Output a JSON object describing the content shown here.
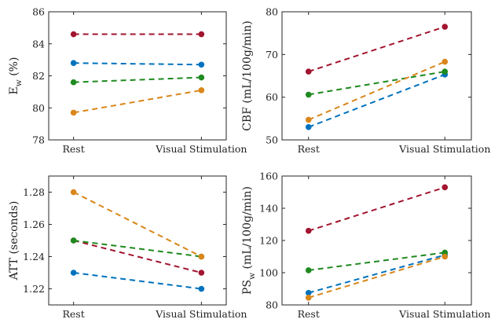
{
  "chart_data": [
    {
      "type": "line",
      "ylabel_main": "E",
      "ylabel_sub": "w",
      "ylabel_tail": " (%)",
      "categories": [
        "Rest",
        "Visual Stimulation"
      ],
      "ylim": [
        78,
        86
      ],
      "yticks": [
        "78",
        "80",
        "82",
        "84",
        "86"
      ],
      "series": [
        {
          "name": "red",
          "values": [
            84.6,
            84.6
          ]
        },
        {
          "name": "blue",
          "values": [
            82.8,
            82.7
          ]
        },
        {
          "name": "green",
          "values": [
            81.6,
            81.9
          ]
        },
        {
          "name": "orange",
          "values": [
            79.7,
            81.1
          ]
        }
      ]
    },
    {
      "type": "line",
      "ylabel_main": "CBF (mL/100g/min)",
      "ylabel_sub": "",
      "ylabel_tail": "",
      "categories": [
        "Rest",
        "Visual Stimulation"
      ],
      "ylim": [
        50,
        80
      ],
      "yticks": [
        "50",
        "60",
        "70",
        "80"
      ],
      "series": [
        {
          "name": "red",
          "values": [
            66.0,
            76.5
          ]
        },
        {
          "name": "blue",
          "values": [
            53.0,
            65.3
          ]
        },
        {
          "name": "green",
          "values": [
            60.6,
            66.0
          ]
        },
        {
          "name": "orange",
          "values": [
            54.7,
            68.3
          ]
        }
      ]
    },
    {
      "type": "line",
      "ylabel_main": "ATT (seconds)",
      "ylabel_sub": "",
      "ylabel_tail": "",
      "categories": [
        "Rest",
        "Visual Stimulation"
      ],
      "ylim": [
        1.21,
        1.29
      ],
      "yticks": [
        "1.22",
        "1.24",
        "1.26",
        "1.28"
      ],
      "series": [
        {
          "name": "red",
          "values": [
            1.25,
            1.23
          ]
        },
        {
          "name": "blue",
          "values": [
            1.23,
            1.22
          ]
        },
        {
          "name": "green",
          "values": [
            1.25,
            1.24
          ]
        },
        {
          "name": "orange",
          "values": [
            1.28,
            1.24
          ]
        }
      ]
    },
    {
      "type": "line",
      "ylabel_main": "PS",
      "ylabel_sub": "w",
      "ylabel_tail": " (mL/100g/min)",
      "categories": [
        "Rest",
        "Visual Stimulation"
      ],
      "ylim": [
        80,
        160
      ],
      "yticks": [
        "80",
        "100",
        "120",
        "140",
        "160"
      ],
      "series": [
        {
          "name": "red",
          "values": [
            126,
            153
          ]
        },
        {
          "name": "blue",
          "values": [
            87.5,
            111
          ]
        },
        {
          "name": "green",
          "values": [
            101.5,
            112.5
          ]
        },
        {
          "name": "orange",
          "values": [
            84.5,
            110
          ]
        }
      ]
    }
  ],
  "colors": {
    "red": "#a2142f",
    "blue": "#0072bd",
    "green": "#1f8a1f",
    "orange": "#d9861a"
  }
}
